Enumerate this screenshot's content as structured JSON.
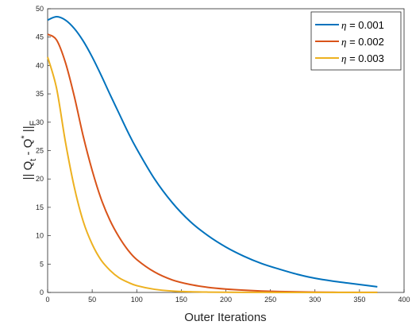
{
  "chart_data": {
    "type": "line",
    "title": "",
    "xlabel": "Outer Iterations",
    "ylabel_parts": {
      "open": "|| Q",
      "sub": "t",
      "mid": " - Q",
      "sup": "*",
      "close": " ||",
      "sub2": "F"
    },
    "xlim": [
      0,
      400
    ],
    "ylim": [
      0,
      50
    ],
    "xticks": [
      "0",
      "50",
      "100",
      "150",
      "200",
      "250",
      "300",
      "350",
      "400"
    ],
    "yticks": [
      "0",
      "5",
      "10",
      "15",
      "20",
      "25",
      "30",
      "35",
      "40",
      "45",
      "50"
    ],
    "grid": false,
    "legend_position": "top-right",
    "x": [
      0,
      10,
      20,
      30,
      40,
      50,
      60,
      70,
      80,
      90,
      100,
      120,
      140,
      160,
      180,
      200,
      220,
      240,
      260,
      280,
      300,
      320,
      340,
      370
    ],
    "series": [
      {
        "name_symbol": "η",
        "name_value": " = 0.001",
        "color": "#0072BD",
        "values": [
          48.0,
          48.6,
          48.0,
          46.5,
          44.3,
          41.5,
          38.3,
          34.9,
          31.6,
          28.3,
          25.3,
          20.0,
          15.8,
          12.5,
          10.0,
          8.0,
          6.4,
          5.1,
          4.1,
          3.2,
          2.5,
          2.0,
          1.6,
          1.0
        ]
      },
      {
        "name_symbol": "η",
        "name_value": " = 0.002",
        "color": "#D95319",
        "values": [
          45.5,
          44.5,
          40.5,
          34.5,
          27.5,
          21.5,
          16.5,
          12.7,
          9.8,
          7.5,
          5.8,
          3.6,
          2.2,
          1.4,
          0.9,
          0.6,
          0.4,
          0.25,
          0.15,
          0.1,
          0.05,
          0.03,
          0.02,
          0.01
        ]
      },
      {
        "name_symbol": "η",
        "name_value": " = 0.003",
        "color": "#EDB120",
        "values": [
          41.5,
          36.0,
          26.5,
          18.5,
          12.5,
          8.5,
          5.7,
          3.9,
          2.6,
          1.8,
          1.2,
          0.55,
          0.25,
          0.12,
          0.06,
          0.03,
          0.015,
          0.01,
          0.005,
          0.0,
          0.0,
          0.0,
          0.0,
          0.0
        ]
      }
    ]
  }
}
